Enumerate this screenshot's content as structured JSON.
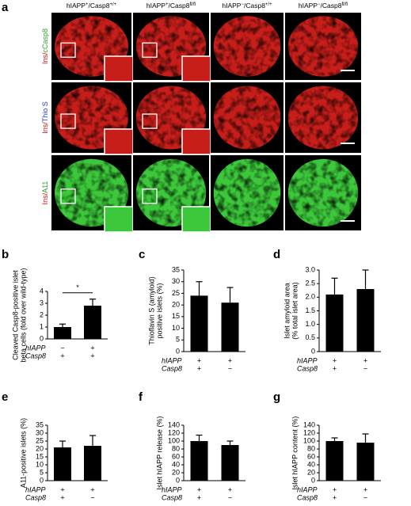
{
  "figure_a": {
    "panel": "a",
    "column_headers": [
      {
        "base1": "hIAPP",
        "sup1": "+",
        "base2": "/Casp8",
        "sup2": "+/+"
      },
      {
        "base1": "hIAPP",
        "sup1": "+",
        "base2": "/Casp8",
        "sup2": "fl/fl"
      },
      {
        "base1": "hIAPP",
        "sup1": "−",
        "base2": "/Casp8",
        "sup2": "+/+"
      },
      {
        "base1": "hIAPP",
        "sup1": "−",
        "base2": "/Casp8",
        "sup2": "fl/fl"
      }
    ],
    "row_labels": [
      [
        "Ins/",
        "cCasp8"
      ],
      [
        "Ins/",
        "Thio S"
      ],
      [
        "Ins/",
        "A11"
      ]
    ]
  },
  "chart_data": [
    {
      "type": "bar",
      "panel": "b",
      "y_label": [
        "Cleaved Casp8-positive islet",
        "beta cells (fold over wild-type)"
      ],
      "values": [
        1.0,
        2.8
      ],
      "errors": [
        0.25,
        0.55
      ],
      "color": "#000000",
      "annotation": "*",
      "conditions": [
        {
          "name": "hIAPP",
          "values": [
            "−",
            "+"
          ]
        },
        {
          "name": "Casp8",
          "values": [
            "+",
            "+"
          ]
        }
      ],
      "ylim": [
        0,
        4
      ],
      "yticks": [
        0,
        1,
        2,
        3,
        4
      ]
    },
    {
      "type": "bar",
      "panel": "c",
      "y_label": [
        "Thioflavin S (amyloid)",
        "positive islets (%)"
      ],
      "values": [
        24,
        21
      ],
      "errors": [
        6,
        6.5
      ],
      "color": "#000000",
      "conditions": [
        {
          "name": "hIAPP",
          "values": [
            "+",
            "+"
          ]
        },
        {
          "name": "Casp8",
          "values": [
            "+",
            "−"
          ]
        }
      ],
      "ylim": [
        0,
        35
      ],
      "yticks": [
        0,
        5,
        10,
        15,
        20,
        25,
        30,
        35
      ]
    },
    {
      "type": "bar",
      "panel": "d",
      "y_label": [
        "Islet amyloid area",
        "(% total islet area)"
      ],
      "values": [
        2.1,
        2.3
      ],
      "errors": [
        0.6,
        0.7
      ],
      "color": "#000000",
      "conditions": [
        {
          "name": "hIAPP",
          "values": [
            "+",
            "+"
          ]
        },
        {
          "name": "Casp8",
          "values": [
            "+",
            "−"
          ]
        }
      ],
      "ylim": [
        0,
        3
      ],
      "yticks": [
        0,
        0.5,
        {
          "value": 1,
          "label": "1.0"
        },
        1.5,
        {
          "value": 2,
          "label": "2.0"
        },
        2.5,
        {
          "value": 3,
          "label": "3.0"
        }
      ]
    },
    {
      "type": "bar",
      "panel": "e",
      "y_label": [
        "A11-positive islets (%)"
      ],
      "values": [
        21,
        22
      ],
      "errors": [
        4,
        6.5
      ],
      "color": "#000000",
      "conditions": [
        {
          "name": "hIAPP",
          "values": [
            "+",
            "+"
          ]
        },
        {
          "name": "Casp8",
          "values": [
            "+",
            "−"
          ]
        }
      ],
      "ylim": [
        0,
        35
      ],
      "yticks": [
        0,
        5,
        10,
        15,
        20,
        25,
        30,
        35
      ]
    },
    {
      "type": "bar",
      "panel": "f",
      "y_label": [
        "Islet hIAPP release (%)"
      ],
      "values": [
        100,
        90
      ],
      "errors": [
        15,
        10
      ],
      "color": "#000000",
      "conditions": [
        {
          "name": "hIAPP",
          "values": [
            "+",
            "+"
          ]
        },
        {
          "name": "Casp8",
          "values": [
            "+",
            "−"
          ]
        }
      ],
      "ylim": [
        0,
        140
      ],
      "yticks": [
        0,
        20,
        40,
        60,
        80,
        100,
        120,
        140
      ]
    },
    {
      "type": "bar",
      "panel": "g",
      "y_label": [
        "Islet hIAPP content (%)"
      ],
      "values": [
        100,
        96
      ],
      "errors": [
        8,
        22
      ],
      "color": "#000000",
      "conditions": [
        {
          "name": "hIAPP",
          "values": [
            "+",
            "+"
          ]
        },
        {
          "name": "Casp8",
          "values": [
            "+",
            "−"
          ]
        }
      ],
      "ylim": [
        0,
        140
      ],
      "yticks": [
        0,
        20,
        40,
        60,
        80,
        100,
        120,
        140
      ]
    }
  ]
}
